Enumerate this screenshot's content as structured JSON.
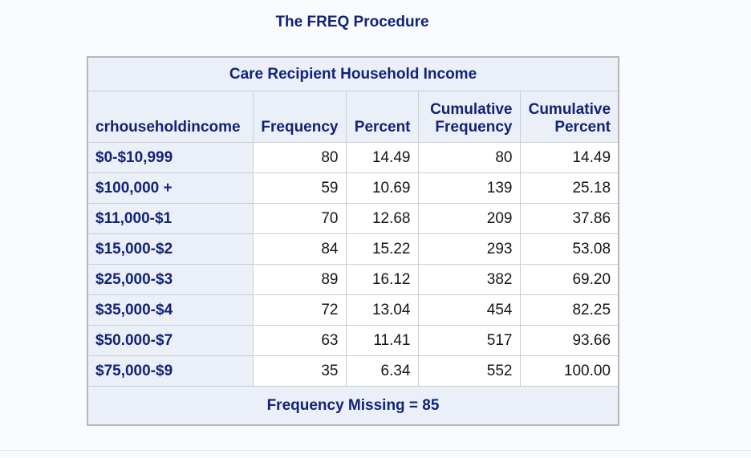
{
  "page": {
    "title": "The FREQ Procedure"
  },
  "colors": {
    "page_background": "#fafbff",
    "header_cell_background": "#ebf0f8",
    "header_text": "#112277",
    "data_text": "#161616",
    "inner_border": "#cbcdd0",
    "outer_border": "#b4b7bb"
  },
  "table": {
    "caption": "Care Recipient Household Income",
    "columns": [
      "crhouseholdincome",
      "Frequency",
      "Percent",
      "Cumulative Frequency",
      "Cumulative Percent"
    ],
    "rows": [
      {
        "label": "$0-$10,999",
        "frequency": "80",
        "percent": "14.49",
        "cum_frequency": "80",
        "cum_percent": "14.49"
      },
      {
        "label": "$100,000 +",
        "frequency": "59",
        "percent": "10.69",
        "cum_frequency": "139",
        "cum_percent": "25.18"
      },
      {
        "label": "$11,000-$1",
        "frequency": "70",
        "percent": "12.68",
        "cum_frequency": "209",
        "cum_percent": "37.86"
      },
      {
        "label": "$15,000-$2",
        "frequency": "84",
        "percent": "15.22",
        "cum_frequency": "293",
        "cum_percent": "53.08"
      },
      {
        "label": "$25,000-$3",
        "frequency": "89",
        "percent": "16.12",
        "cum_frequency": "382",
        "cum_percent": "69.20"
      },
      {
        "label": "$35,000-$4",
        "frequency": "72",
        "percent": "13.04",
        "cum_frequency": "454",
        "cum_percent": "82.25"
      },
      {
        "label": "$50.000-$7",
        "frequency": "63",
        "percent": "11.41",
        "cum_frequency": "517",
        "cum_percent": "93.66"
      },
      {
        "label": "$75,000-$9",
        "frequency": "35",
        "percent": "6.34",
        "cum_frequency": "552",
        "cum_percent": "100.00"
      }
    ],
    "footer": "Frequency Missing = 85"
  }
}
